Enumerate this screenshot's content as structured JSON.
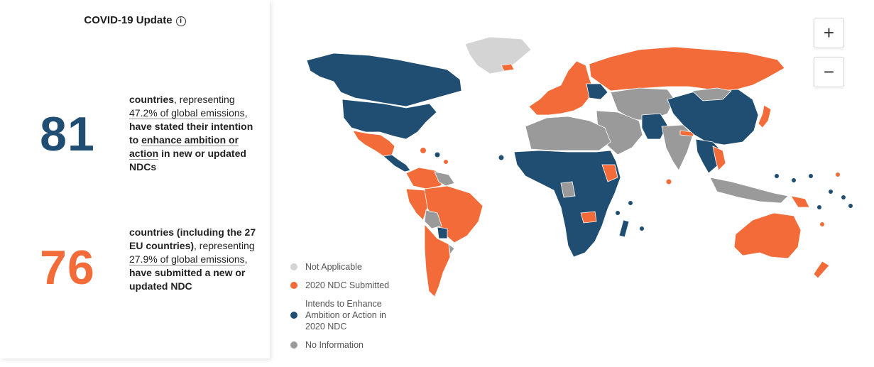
{
  "panel": {
    "title": "COVID-19 Update",
    "info_icon": "info-circle-icon"
  },
  "stat1": {
    "number": "81",
    "text_a": "countries",
    "text_b": ", representing ",
    "link_a": "47.2% of global emissions",
    "text_c": ", ",
    "text_d": "have stated their intention to ",
    "link_b": "enhance ambition or action",
    "text_e": " in new or updated NDCs"
  },
  "stat2": {
    "number": "76",
    "text_a": "countries (including the 27 EU countries)",
    "text_b": ", representing ",
    "link_a": "27.9% of global emissions",
    "text_c": ", ",
    "text_d": "have submitted a new or updated NDC"
  },
  "zoom": {
    "in": "+",
    "out": "−"
  },
  "legend": [
    {
      "label": "Not Applicable",
      "color": "#d4d4d4"
    },
    {
      "label": "2020 NDC Submitted",
      "color": "#f26b38"
    },
    {
      "label": "Intends to Enhance Ambition or Action in 2020 NDC",
      "color": "#1f4e72"
    },
    {
      "label": "No Information",
      "color": "#9a9a9a"
    }
  ],
  "colors": {
    "blue": "#1f4e72",
    "orange": "#f26b38",
    "light_gray": "#d4d4d4",
    "gray": "#9a9a9a"
  }
}
